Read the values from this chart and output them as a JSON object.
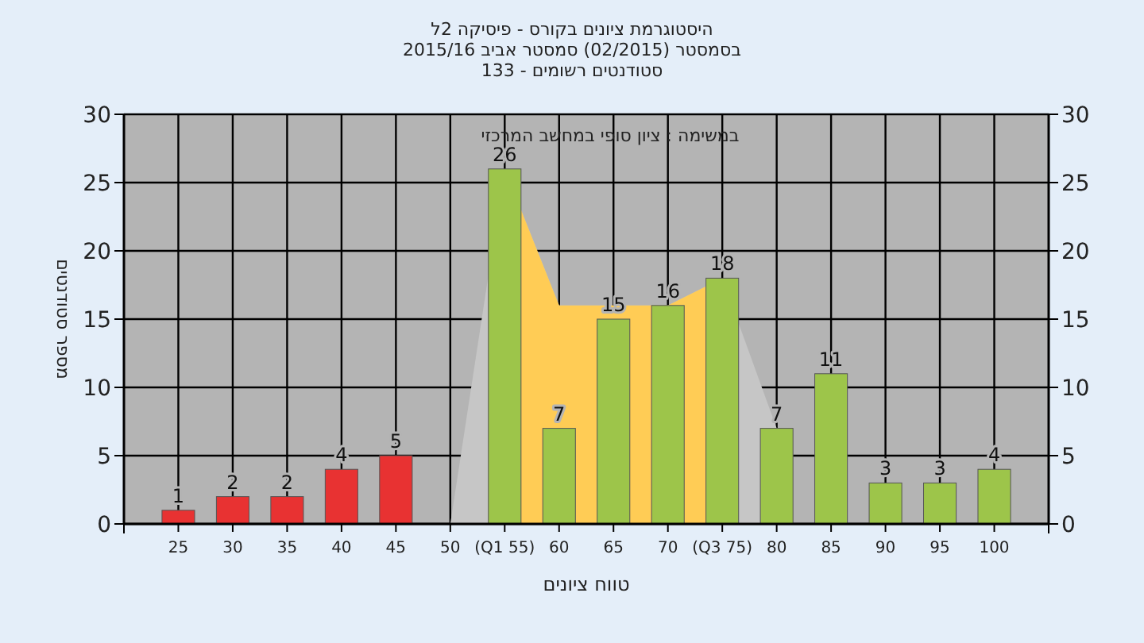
{
  "chart_data": {
    "type": "bar",
    "title": "היסטוגרמת ציונים בקורס - פיסיקה 2ל",
    "subtitle": "בסמסטר  (02/2015)  סמסטר אביב 2015/16\nסטודנטים רשומים - 133",
    "xlabel": "טווח ציונים",
    "ylabel": "מספר סטודנטים",
    "annotations": [
      "במשימה : ציון סופי במחשב המרכזי"
    ],
    "xlim": [
      20,
      105
    ],
    "xticks": [
      25,
      30,
      35,
      40,
      45,
      50,
      {
        "value": 55,
        "label": "(Q1 55)"
      },
      60,
      65,
      70,
      {
        "value": 75,
        "label": "(Q3 75)"
      },
      80,
      85,
      90,
      95,
      100
    ],
    "ylim": [
      0,
      30
    ],
    "yticks": [
      0,
      5,
      10,
      15,
      20,
      25,
      30
    ],
    "y2lim": [
      0,
      30
    ],
    "y2ticks": [
      0,
      5,
      10,
      15,
      20,
      25,
      30
    ],
    "grid": true,
    "series": [
      {
        "type": "area",
        "color": "#c6c6c6",
        "x": [
          50,
          55,
          60,
          70,
          75,
          80
        ],
        "values": [
          0,
          26,
          16,
          16,
          18,
          7
        ]
      },
      {
        "type": "area",
        "color": "#ffcc55",
        "x": [
          55,
          60,
          70,
          75
        ],
        "values": [
          26,
          16,
          16,
          18
        ]
      },
      {
        "x": [
          25,
          30,
          35,
          40,
          45,
          55,
          60,
          65,
          70,
          75,
          80,
          85,
          90,
          95,
          100
        ],
        "values": [
          1,
          2,
          2,
          4,
          5,
          26,
          7,
          15,
          16,
          18,
          7,
          11,
          3,
          3,
          4
        ],
        "value_labels": [
          "1",
          "2",
          "2",
          "4",
          "5",
          "26",
          "7",
          "15",
          "16",
          "18",
          "7",
          "11",
          "3",
          "3",
          "4"
        ],
        "colors": [
          "#e83232",
          "#e83232",
          "#e83232",
          "#e83232",
          "#e83232",
          "#9dc54a",
          "#9dc54a",
          "#9dc54a",
          "#9dc54a",
          "#9dc54a",
          "#9dc54a",
          "#9dc54a",
          "#9dc54a",
          "#9dc54a",
          "#9dc54a"
        ]
      }
    ]
  }
}
